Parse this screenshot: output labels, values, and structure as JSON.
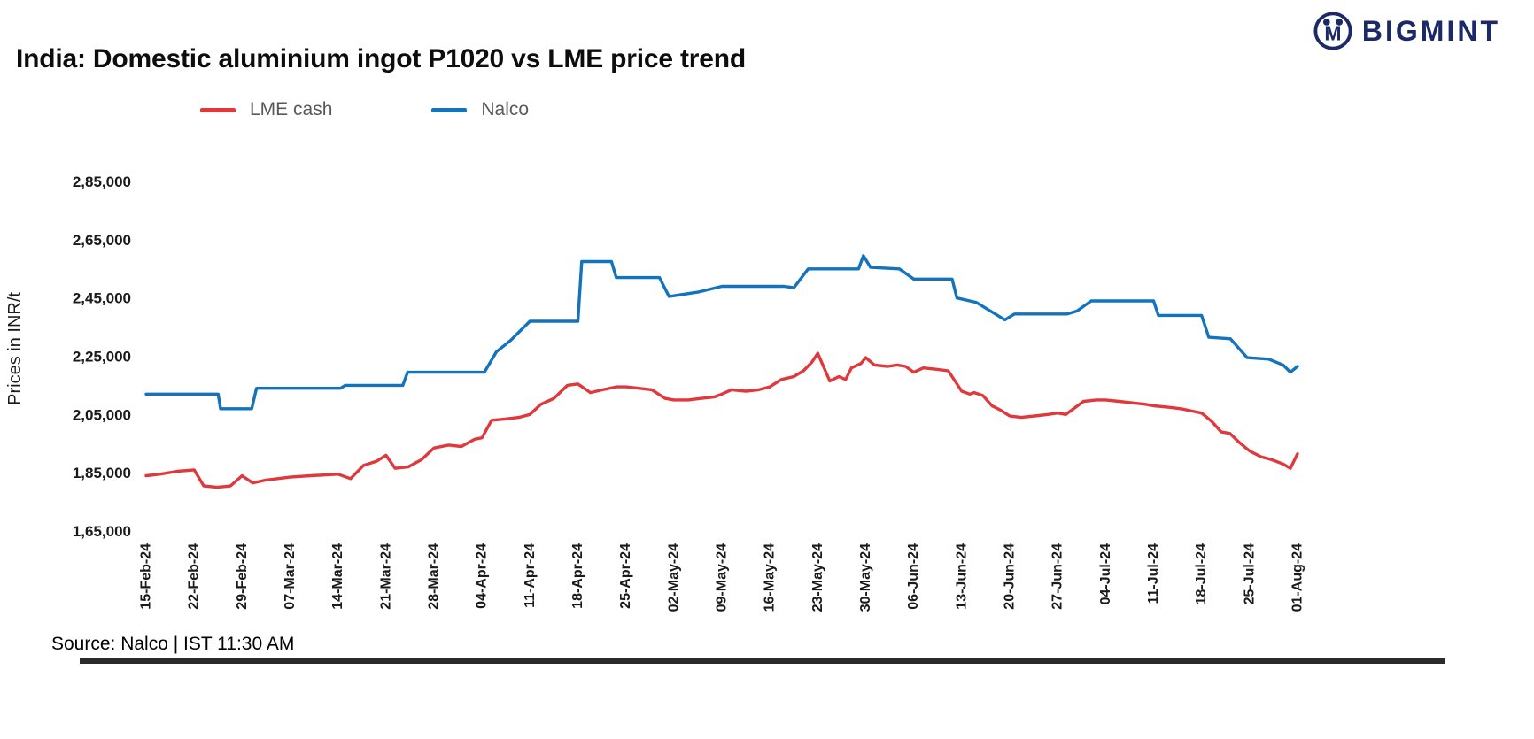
{
  "header": {
    "title": "India: Domestic aluminium ingot P1020 vs LME price trend",
    "logo_text": "BIGMINT",
    "logo_color": "#1b2a67"
  },
  "legend": [
    {
      "label": "LME cash",
      "color": "#e0393d"
    },
    {
      "label": "Nalco",
      "color": "#1473bd"
    }
  ],
  "footer": {
    "source": "Source: Nalco | IST 11:30 AM"
  },
  "chart_data": {
    "type": "line",
    "title": "India: Domestic aluminium ingot P1020 vs LME price trend",
    "xlabel": "",
    "ylabel": "Prices in INR/t",
    "grid": false,
    "legend_position": "top",
    "ylim": [
      165000,
      285000
    ],
    "y_ticks": [
      {
        "value": 285000,
        "label": "2,85,000"
      },
      {
        "value": 265000,
        "label": "2,65,000"
      },
      {
        "value": 245000,
        "label": "2,45,000"
      },
      {
        "value": 225000,
        "label": "2,25,000"
      },
      {
        "value": 205000,
        "label": "2,05,000"
      },
      {
        "value": 185000,
        "label": "1,85,000"
      },
      {
        "value": 165000,
        "label": "1,65,000"
      }
    ],
    "categories": [
      "15-Feb-24",
      "22-Feb-24",
      "29-Feb-24",
      "07-Mar-24",
      "14-Mar-24",
      "21-Mar-24",
      "28-Mar-24",
      "04-Apr-24",
      "11-Apr-24",
      "18-Apr-24",
      "25-Apr-24",
      "02-May-24",
      "09-May-24",
      "16-May-24",
      "23-May-24",
      "30-May-24",
      "06-Jun-24",
      "13-Jun-24",
      "20-Jun-24",
      "27-Jun-24",
      "04-Jul-24",
      "11-Jul-24",
      "18-Jul-24",
      "25-Jul-24",
      "01-Aug-24"
    ],
    "series": [
      {
        "name": "LME cash",
        "color": "#e0393d",
        "points": [
          [
            0,
            184000
          ],
          [
            0.28,
            184500
          ],
          [
            0.65,
            185500
          ],
          [
            1,
            186000
          ],
          [
            1.2,
            180500
          ],
          [
            1.48,
            180000
          ],
          [
            1.76,
            180500
          ],
          [
            2,
            184000
          ],
          [
            2.22,
            181500
          ],
          [
            2.5,
            182500
          ],
          [
            3,
            183500
          ],
          [
            3.43,
            184000
          ],
          [
            4,
            184500
          ],
          [
            4.26,
            183000
          ],
          [
            4.53,
            187500
          ],
          [
            4.81,
            189000
          ],
          [
            5,
            191000
          ],
          [
            5.19,
            186500
          ],
          [
            5.46,
            187000
          ],
          [
            5.74,
            189500
          ],
          [
            6,
            193500
          ],
          [
            6.3,
            194500
          ],
          [
            6.57,
            194000
          ],
          [
            6.85,
            196500
          ],
          [
            7,
            197000
          ],
          [
            7.2,
            203000
          ],
          [
            7.5,
            203500
          ],
          [
            7.77,
            204000
          ],
          [
            8,
            205000
          ],
          [
            8.23,
            208500
          ],
          [
            8.5,
            210500
          ],
          [
            8.78,
            215000
          ],
          [
            9,
            215500
          ],
          [
            9.26,
            212500
          ],
          [
            9.52,
            213500
          ],
          [
            9.8,
            214500
          ],
          [
            10,
            214500
          ],
          [
            10.27,
            214000
          ],
          [
            10.54,
            213500
          ],
          [
            10.82,
            210500
          ],
          [
            11,
            210000
          ],
          [
            11.3,
            210000
          ],
          [
            11.56,
            210500
          ],
          [
            11.84,
            211000
          ],
          [
            12,
            212000
          ],
          [
            12.2,
            213500
          ],
          [
            12.5,
            213000
          ],
          [
            12.77,
            213500
          ],
          [
            13,
            214500
          ],
          [
            13.24,
            217000
          ],
          [
            13.5,
            218000
          ],
          [
            13.7,
            220000
          ],
          [
            13.88,
            223000
          ],
          [
            14,
            226000
          ],
          [
            14.25,
            216500
          ],
          [
            14.44,
            218000
          ],
          [
            14.58,
            217000
          ],
          [
            14.7,
            221000
          ],
          [
            14.9,
            222500
          ],
          [
            15,
            224500
          ],
          [
            15.18,
            222000
          ],
          [
            15.46,
            221500
          ],
          [
            15.65,
            222000
          ],
          [
            15.83,
            221500
          ],
          [
            16,
            219500
          ],
          [
            16.2,
            221000
          ],
          [
            16.48,
            220500
          ],
          [
            16.72,
            220000
          ],
          [
            17,
            213000
          ],
          [
            17.17,
            212000
          ],
          [
            17.26,
            212500
          ],
          [
            17.44,
            211500
          ],
          [
            17.63,
            208000
          ],
          [
            17.81,
            206500
          ],
          [
            18,
            204500
          ],
          [
            18.24,
            204000
          ],
          [
            18.52,
            204500
          ],
          [
            18.8,
            205000
          ],
          [
            19,
            205500
          ],
          [
            19.17,
            205000
          ],
          [
            19.54,
            209500
          ],
          [
            19.81,
            210000
          ],
          [
            20,
            210000
          ],
          [
            20.28,
            209500
          ],
          [
            20.56,
            209000
          ],
          [
            20.83,
            208500
          ],
          [
            21,
            208000
          ],
          [
            21.3,
            207500
          ],
          [
            21.57,
            207000
          ],
          [
            21.85,
            206000
          ],
          [
            22,
            205500
          ],
          [
            22.22,
            202500
          ],
          [
            22.41,
            199000
          ],
          [
            22.59,
            198500
          ],
          [
            22.78,
            195500
          ],
          [
            23,
            192500
          ],
          [
            23.24,
            190500
          ],
          [
            23.46,
            189500
          ],
          [
            23.7,
            188000
          ],
          [
            23.85,
            186500
          ],
          [
            24,
            191500
          ]
        ]
      },
      {
        "name": "Nalco",
        "color": "#1473bd",
        "points": [
          [
            0,
            212000
          ],
          [
            1.5,
            212000
          ],
          [
            1.55,
            207000
          ],
          [
            2.2,
            207000
          ],
          [
            2.3,
            214000
          ],
          [
            4.05,
            214000
          ],
          [
            4.15,
            215000
          ],
          [
            5.35,
            215000
          ],
          [
            5.45,
            219500
          ],
          [
            7.05,
            219500
          ],
          [
            7.3,
            226500
          ],
          [
            7.6,
            230500
          ],
          [
            8,
            237000
          ],
          [
            9,
            237000
          ],
          [
            9.08,
            257500
          ],
          [
            9.7,
            257500
          ],
          [
            9.8,
            252000
          ],
          [
            10.7,
            252000
          ],
          [
            10.9,
            245500
          ],
          [
            11.5,
            247000
          ],
          [
            12,
            249000
          ],
          [
            13.3,
            249000
          ],
          [
            13.5,
            248500
          ],
          [
            13.8,
            255000
          ],
          [
            14.85,
            255000
          ],
          [
            14.95,
            259500
          ],
          [
            15.1,
            255500
          ],
          [
            15.7,
            255000
          ],
          [
            16,
            251500
          ],
          [
            16.8,
            251500
          ],
          [
            16.9,
            245000
          ],
          [
            17.3,
            243500
          ],
          [
            17.9,
            237500
          ],
          [
            18.1,
            239500
          ],
          [
            19.2,
            239500
          ],
          [
            19.4,
            240500
          ],
          [
            19.7,
            244000
          ],
          [
            21,
            244000
          ],
          [
            21.1,
            239000
          ],
          [
            22,
            239000
          ],
          [
            22.15,
            231500
          ],
          [
            22.6,
            231000
          ],
          [
            22.95,
            224500
          ],
          [
            23.4,
            224000
          ],
          [
            23.7,
            222000
          ],
          [
            23.85,
            219500
          ],
          [
            24,
            221500
          ]
        ]
      }
    ]
  }
}
